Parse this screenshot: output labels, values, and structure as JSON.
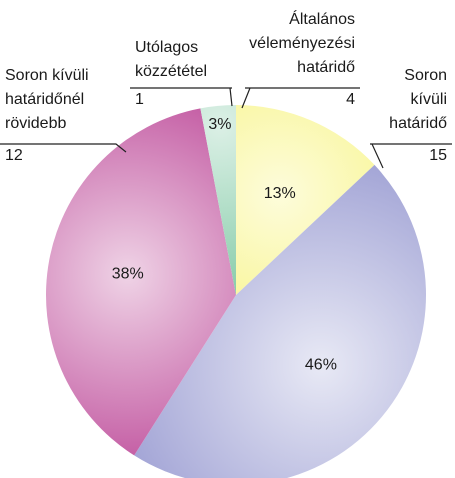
{
  "chart_data": {
    "type": "pie",
    "categories": [
      [
        "Általános",
        "véleményezési",
        "határidő"
      ],
      [
        "Soron",
        "kívüli",
        "határidő"
      ],
      [
        "Soron kívüli",
        "határidőnél",
        "rövidebb"
      ],
      [
        "Utólagos",
        "közzététel"
      ]
    ],
    "values": [
      13,
      46,
      38,
      3
    ],
    "value_labels": [
      "13%",
      "46%",
      "38%",
      "3%"
    ],
    "counts": [
      4,
      15,
      12,
      1
    ],
    "colors": [
      "#f6f270",
      "#a3a5d6",
      "#bf4f9c",
      "#74c49c"
    ],
    "start_angle": 0,
    "direction": "clockwise"
  }
}
